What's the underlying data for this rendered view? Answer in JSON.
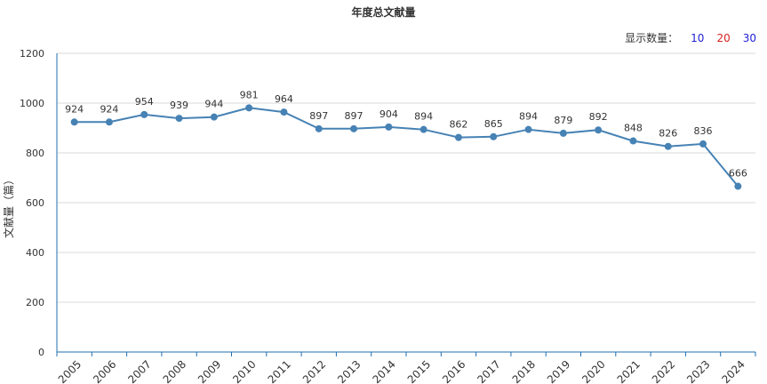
{
  "title": "年度总文献量",
  "count_selector": {
    "label": "显示数量：",
    "options": [
      {
        "label": "10",
        "color": "#1f1fd6"
      },
      {
        "label": "20",
        "color": "#d61f1f"
      },
      {
        "label": "30",
        "color": "#1f1fd6"
      }
    ]
  },
  "colors": {
    "line": "#4682b4",
    "axis": "#1f6fb0",
    "grid": "#d9d9d9"
  },
  "chart_data": {
    "type": "line",
    "title": "年度总文献量",
    "xlabel": "",
    "ylabel": "文献量（篇）",
    "ylim": [
      0,
      1200
    ],
    "yticks": [
      0,
      200,
      400,
      600,
      800,
      1000,
      1200
    ],
    "grid": true,
    "categories": [
      "2005",
      "2006",
      "2007",
      "2008",
      "2009",
      "2010",
      "2011",
      "2012",
      "2013",
      "2014",
      "2015",
      "2016",
      "2017",
      "2018",
      "2019",
      "2020",
      "2021",
      "2022",
      "2023",
      "2024"
    ],
    "series": [
      {
        "values": [
          924,
          924,
          954,
          939,
          944,
          981,
          964,
          897,
          897,
          904,
          894,
          862,
          865,
          894,
          879,
          892,
          848,
          826,
          836,
          666
        ]
      }
    ]
  }
}
